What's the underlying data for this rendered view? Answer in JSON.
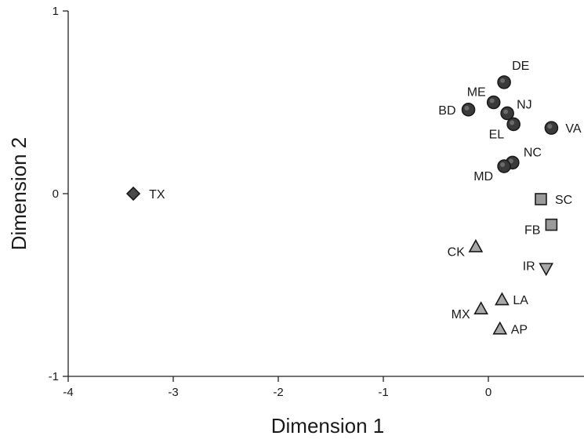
{
  "chart_data": {
    "type": "scatter",
    "title": "",
    "xlabel": "Dimension 1",
    "ylabel": "Dimension 2",
    "xlim": [
      -4,
      1
    ],
    "ylim": [
      -1,
      1
    ],
    "x_ticks": [
      -4,
      -3,
      -2,
      -1,
      0
    ],
    "y_ticks": [
      -1,
      0,
      1
    ],
    "grid": false,
    "legend": "none",
    "colors": {
      "circle": "#3a3a3a",
      "diamond": "#4a4a4a",
      "square": "#9a9a9a",
      "triangle": "#a8a8a8",
      "outline": "#1a1a1a"
    },
    "series": [
      {
        "marker": "circle",
        "points": [
          {
            "label": "DE",
            "x": 0.15,
            "y": 0.61
          },
          {
            "label": "ME",
            "x": 0.05,
            "y": 0.5
          },
          {
            "label": "BD",
            "x": -0.19,
            "y": 0.46
          },
          {
            "label": "NJ",
            "x": 0.18,
            "y": 0.44
          },
          {
            "label": "EL",
            "x": 0.24,
            "y": 0.38
          },
          {
            "label": "VA",
            "x": 0.6,
            "y": 0.36
          },
          {
            "label": "NC",
            "x": 0.23,
            "y": 0.17
          },
          {
            "label": "MD",
            "x": 0.15,
            "y": 0.15
          }
        ]
      },
      {
        "marker": "diamond",
        "points": [
          {
            "label": "TX",
            "x": -3.38,
            "y": 0.0
          }
        ]
      },
      {
        "marker": "square",
        "points": [
          {
            "label": "SC",
            "x": 0.5,
            "y": -0.03
          },
          {
            "label": "FB",
            "x": 0.6,
            "y": -0.17
          }
        ]
      },
      {
        "marker": "triangle-up",
        "points": [
          {
            "label": "CK",
            "x": -0.12,
            "y": -0.29
          },
          {
            "label": "LA",
            "x": 0.13,
            "y": -0.58
          },
          {
            "label": "MX",
            "x": -0.07,
            "y": -0.63
          },
          {
            "label": "AP",
            "x": 0.11,
            "y": -0.74
          }
        ]
      },
      {
        "marker": "triangle-down",
        "points": [
          {
            "label": "IR",
            "x": 0.55,
            "y": -0.41
          }
        ]
      }
    ]
  }
}
